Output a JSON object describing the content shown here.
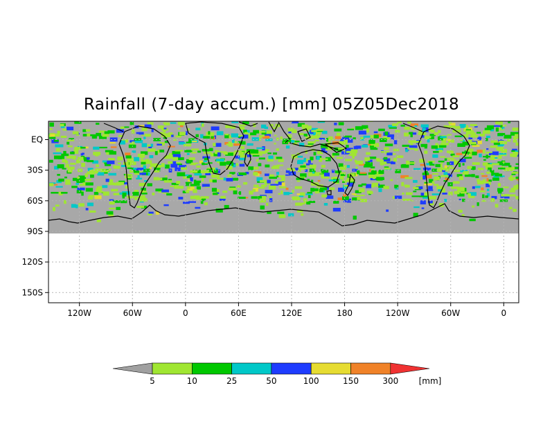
{
  "title": "Rainfall (7-day accum.) [mm] 05Z05Dec2018",
  "lat_ticks": [
    {
      "label": "EQ",
      "lat": 0
    },
    {
      "label": "30S",
      "lat": -30
    },
    {
      "label": "60S",
      "lat": -60
    },
    {
      "label": "90S",
      "lat": -90
    },
    {
      "label": "120S",
      "lat": -120
    },
    {
      "label": "150S",
      "lat": -150
    }
  ],
  "lon_ticks": [
    {
      "label": "120W",
      "lon": 120
    },
    {
      "label": "60W",
      "lon": 180
    },
    {
      "label": "0",
      "lon": 240
    },
    {
      "label": "60E",
      "lon": 300
    },
    {
      "label": "120E",
      "lon": 360
    },
    {
      "label": "180",
      "lon": 420
    },
    {
      "label": "120W",
      "lon": 480
    },
    {
      "label": "60W",
      "lon": 540
    },
    {
      "label": "0",
      "lon": 600
    }
  ],
  "colorbar": {
    "levels": [
      "5",
      "10",
      "25",
      "50",
      "100",
      "150",
      "300"
    ],
    "unit": "[mm]",
    "colors": {
      "below": "#a0a0a0",
      "bins": [
        "#a0e632",
        "#00c800",
        "#00c8c8",
        "#1e3cff",
        "#e6dc32",
        "#f08228"
      ],
      "above": "#f03232"
    }
  },
  "colors": {
    "land_background": "#a8a8a8",
    "coastline": "#000000",
    "grid": "#b4b4b4",
    "frame": "#000000"
  }
}
